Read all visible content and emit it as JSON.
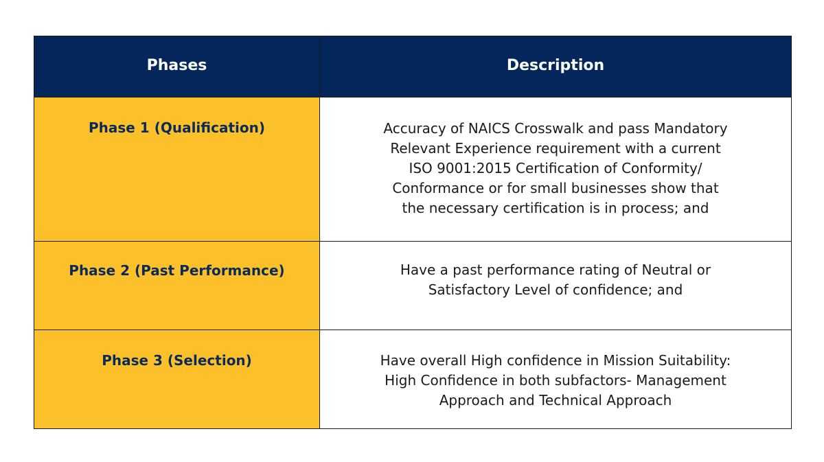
{
  "table": {
    "header": {
      "phases": "Phases",
      "description": "Description"
    },
    "rows": [
      {
        "phase": "Phase 1 (Qualification)",
        "description": "Accuracy of NAICS Crosswalk and pass Mandatory\nRelevant Experience requirement with a current\nISO 9001:2015 Certification of Conformity/\nConformance or for small businesses show that\nthe necessary certification is in process; and"
      },
      {
        "phase": "Phase 2 (Past Performance)",
        "description": "Have a past performance rating of Neutral or\nSatisfactory Level of confidence; and"
      },
      {
        "phase": "Phase 3 (Selection)",
        "description": "Have overall High confidence in Mission Suitability:\nHigh Confidence in both subfactors- Management\nApproach and Technical Approach"
      }
    ]
  },
  "colors": {
    "header_bg": "#04265a",
    "phase_bg": "#fcc02a",
    "phase_text": "#0b2a57"
  }
}
